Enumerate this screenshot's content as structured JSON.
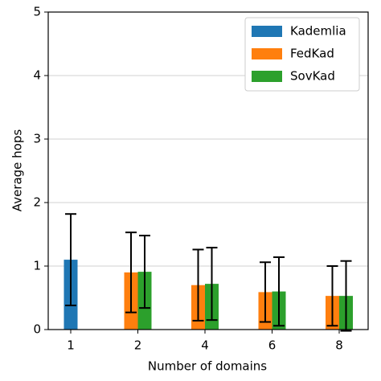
{
  "chart_data": {
    "type": "bar",
    "x_label": "Number of domains",
    "y_label": "Average hops",
    "categories": [
      "1",
      "2",
      "4",
      "6",
      "8"
    ],
    "series": [
      {
        "name": "Kademlia",
        "color": "#1f77b4",
        "values": [
          1.1,
          null,
          null,
          null,
          null
        ],
        "errors": [
          0.72,
          null,
          null,
          null,
          null
        ]
      },
      {
        "name": "FedKad",
        "color": "#ff7f0e",
        "values": [
          null,
          0.9,
          0.7,
          0.59,
          0.53
        ],
        "errors": [
          null,
          0.63,
          0.56,
          0.47,
          0.47
        ]
      },
      {
        "name": "SovKad",
        "color": "#2ca02c",
        "values": [
          null,
          0.91,
          0.72,
          0.6,
          0.53
        ],
        "errors": [
          null,
          0.57,
          0.57,
          0.54,
          0.55
        ]
      }
    ],
    "ylim": [
      0,
      5
    ],
    "yticks": [
      0,
      1,
      2,
      3,
      4,
      5
    ],
    "grid": true,
    "legend": "upper right"
  }
}
